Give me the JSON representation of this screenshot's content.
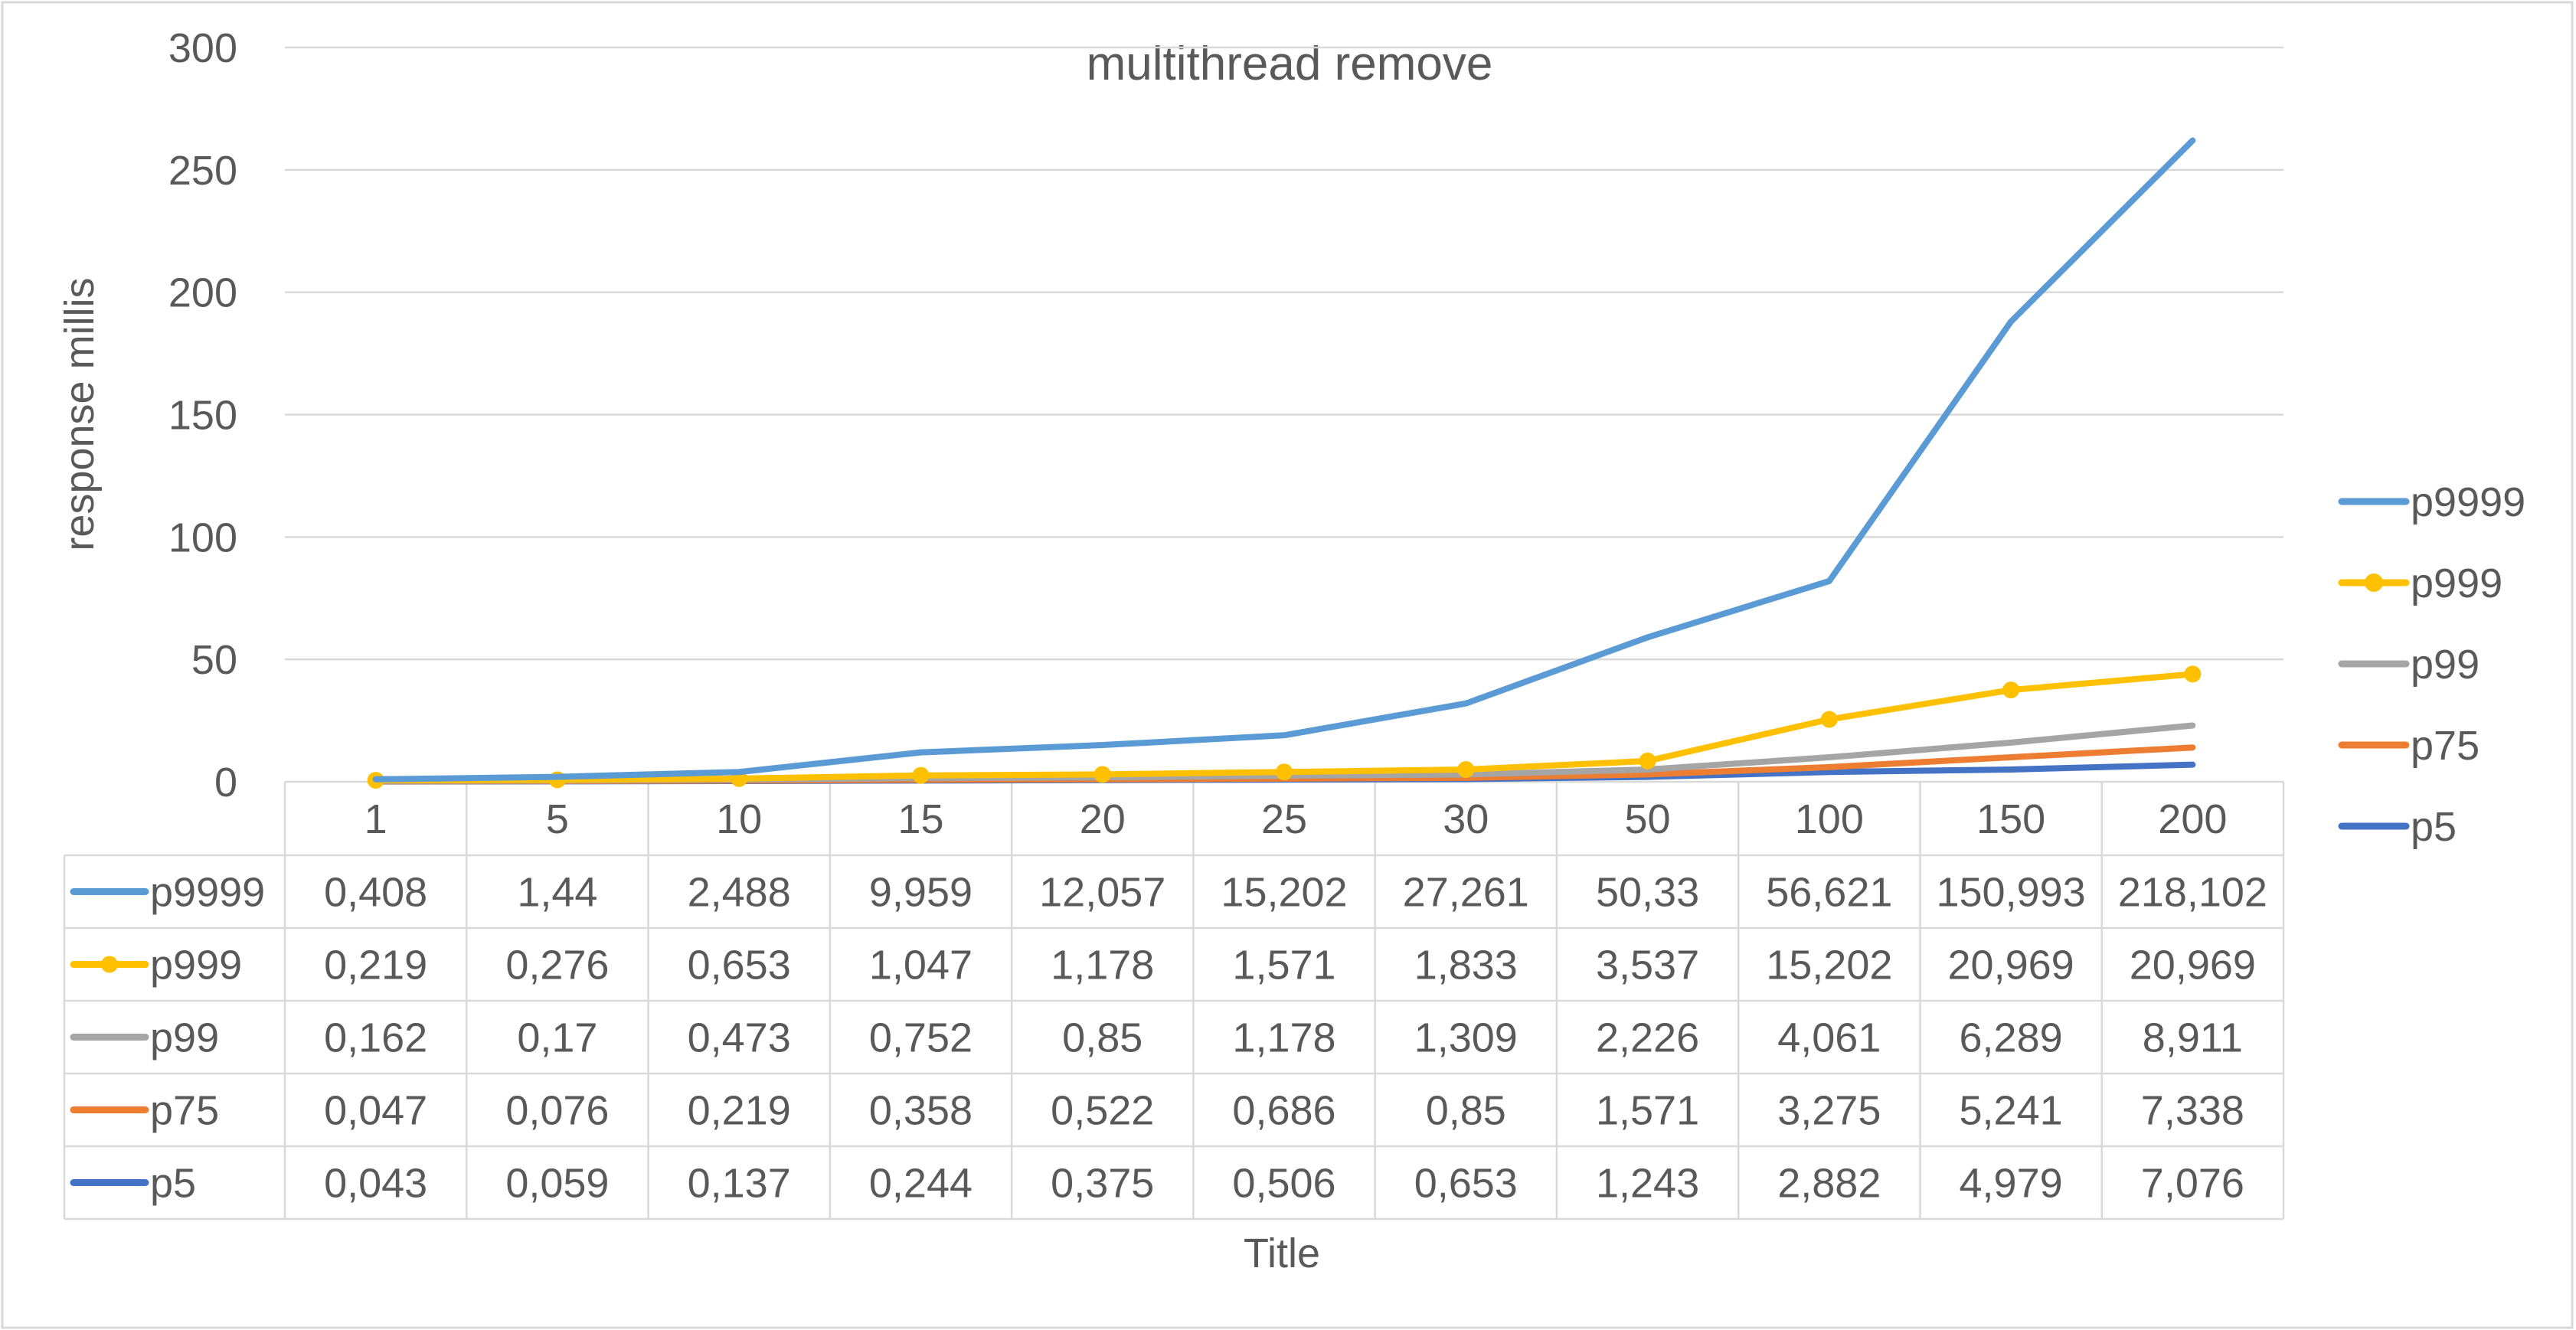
{
  "chart_data": {
    "type": "line",
    "title": "multithread remove",
    "xlabel": "Title",
    "ylabel": "response millis",
    "categories": [
      "1",
      "5",
      "10",
      "15",
      "20",
      "25",
      "30",
      "50",
      "100",
      "150",
      "200"
    ],
    "ylim": [
      0,
      300
    ],
    "yticks": [
      0,
      50,
      100,
      150,
      200,
      250,
      300
    ],
    "grid": "horizontal",
    "legend_position": "right",
    "data_table": true,
    "series": [
      {
        "name": "p9999",
        "color": "#5B9BD5",
        "marker": "none",
        "values": [
          0.408,
          1.44,
          2.488,
          9.959,
          12.057,
          15.202,
          27.261,
          50.33,
          56.621,
          150.993,
          218.102
        ],
        "plotted_values": [
          1,
          2,
          4,
          12,
          15,
          19,
          32,
          59,
          82,
          188,
          262
        ],
        "table_labels": [
          "0,408",
          "1,44",
          "2,488",
          "9,959",
          "12,057",
          "15,202",
          "27,261",
          "50,33",
          "56,621",
          "150,993",
          "218,102"
        ]
      },
      {
        "name": "p999",
        "color": "#FFC000",
        "marker": "circle",
        "values": [
          0.219,
          0.276,
          0.653,
          1.047,
          1.178,
          1.571,
          1.833,
          3.537,
          15.202,
          20.969,
          20.969
        ],
        "plotted_values": [
          0.6,
          0.8,
          1.3,
          2.6,
          3,
          4,
          5,
          8.5,
          25.5,
          37.5,
          44
        ],
        "table_labels": [
          "0,219",
          "0,276",
          "0,653",
          "1,047",
          "1,178",
          "1,571",
          "1,833",
          "3,537",
          "15,202",
          "20,969",
          "20,969"
        ]
      },
      {
        "name": "p99",
        "color": "#A5A5A5",
        "marker": "none",
        "values": [
          0.162,
          0.17,
          0.473,
          0.752,
          0.85,
          1.178,
          1.309,
          2.226,
          4.061,
          6.289,
          8.911
        ],
        "plotted_values": [
          0.4,
          0.5,
          0.9,
          1.5,
          1.8,
          2.5,
          3,
          5,
          10,
          16,
          23
        ],
        "table_labels": [
          "0,162",
          "0,17",
          "0,473",
          "0,752",
          "0,85",
          "1,178",
          "1,309",
          "2,226",
          "4,061",
          "6,289",
          "8,911"
        ]
      },
      {
        "name": "p75",
        "color": "#ED7D31",
        "marker": "none",
        "values": [
          0.047,
          0.076,
          0.219,
          0.358,
          0.522,
          0.686,
          0.85,
          1.571,
          3.275,
          5.241,
          7.338
        ],
        "plotted_values": [
          0.2,
          0.3,
          0.5,
          0.8,
          1,
          1.3,
          1.6,
          3,
          6,
          10,
          14
        ],
        "table_labels": [
          "0,047",
          "0,076",
          "0,219",
          "0,358",
          "0,522",
          "0,686",
          "0,85",
          "1,571",
          "3,275",
          "5,241",
          "7,338"
        ]
      },
      {
        "name": "p5",
        "color": "#4472C4",
        "marker": "none",
        "values": [
          0.043,
          0.059,
          0.137,
          0.244,
          0.375,
          0.506,
          0.653,
          1.243,
          2.882,
          4.979,
          7.076
        ],
        "plotted_values": [
          0.1,
          0.2,
          0.3,
          0.5,
          0.7,
          0.9,
          1.1,
          2,
          4,
          5,
          7
        ],
        "table_labels": [
          "0,043",
          "0,059",
          "0,137",
          "0,244",
          "0,375",
          "0,506",
          "0,653",
          "1,243",
          "2,882",
          "4,979",
          "7,076"
        ]
      }
    ]
  }
}
